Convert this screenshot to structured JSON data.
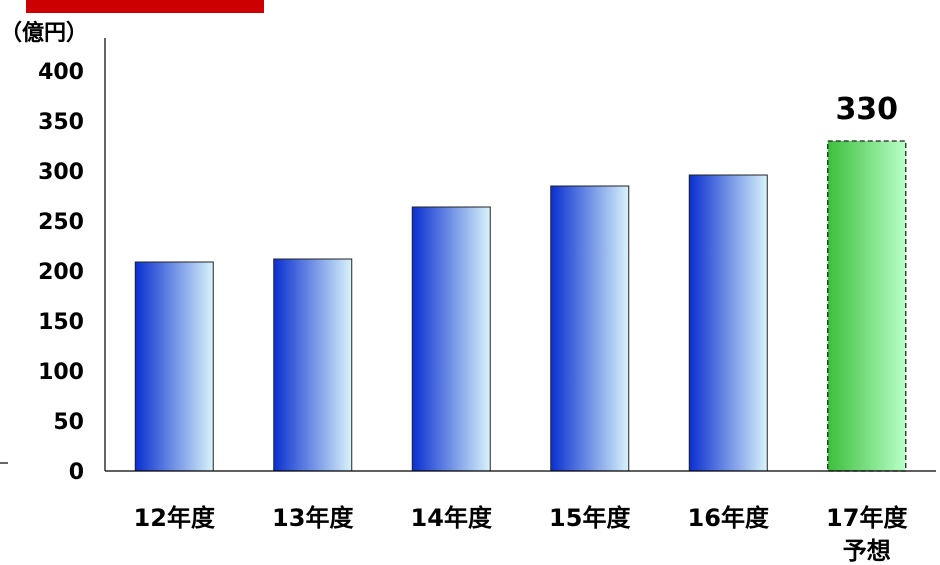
{
  "chart_data": {
    "type": "bar",
    "y_unit_label": "（億円）",
    "categories": [
      "12年度",
      "13年度",
      "14年度",
      "15年度",
      "16年度",
      "17年度"
    ],
    "category_sublabels": [
      "",
      "",
      "",
      "",
      "",
      "予想"
    ],
    "values": [
      209,
      212,
      264,
      285,
      296,
      330
    ],
    "forecast_index": 5,
    "data_labels": [
      {
        "index": 5,
        "text": "330"
      }
    ],
    "yticks": [
      "0",
      "50",
      "100",
      "150",
      "200",
      "250",
      "300",
      "350",
      "400"
    ],
    "ylim": [
      0,
      400
    ],
    "grid": false,
    "colors": {
      "bar_dark": "#0a2fd0",
      "bar_light": "#d8f3fb",
      "forecast_dark": "#3cbf3c",
      "forecast_light": "#b8ffc8",
      "accent_red": "#cc0000"
    }
  }
}
